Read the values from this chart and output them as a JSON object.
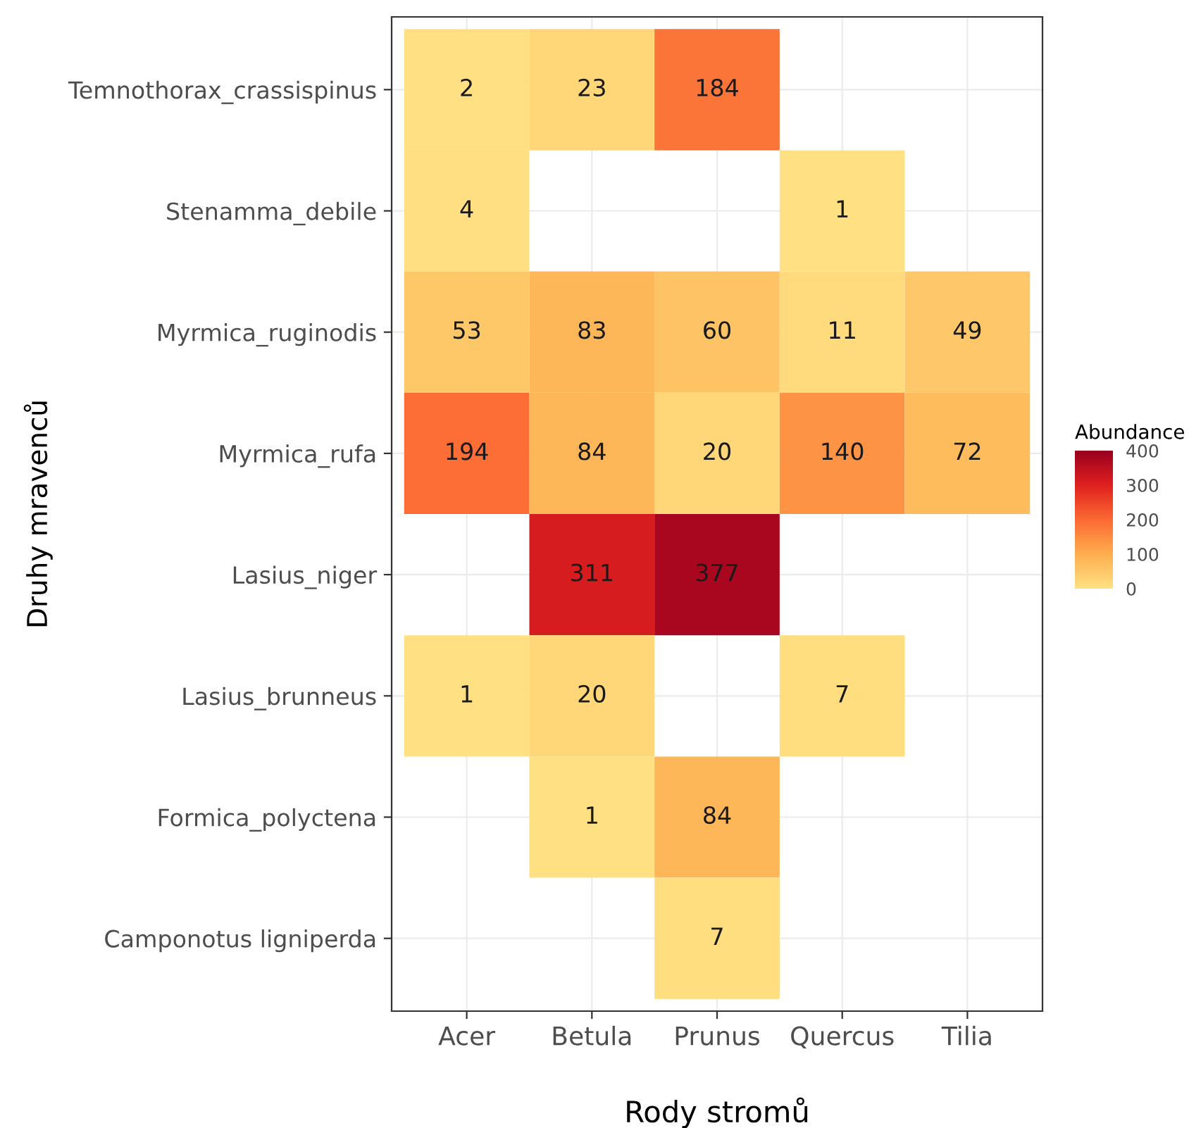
{
  "chart_data": {
    "type": "heatmap",
    "xlabel": "Rody stromů",
    "ylabel": "Druhy mravenců",
    "clabel": "Abundance",
    "categories": [
      "Acer",
      "Betula",
      "Prunus",
      "Quercus",
      "Tilia"
    ],
    "y_categories": [
      "Temnothorax_crassispinus",
      "Stenamma_debile",
      "Myrmica_ruginodis",
      "Myrmica_rufa",
      "Lasius_niger",
      "Lasius_brunneus",
      "Formica_polyctena",
      "Camponotus ligniperda"
    ],
    "cells": [
      [
        2,
        23,
        184,
        null,
        null
      ],
      [
        4,
        null,
        null,
        1,
        null
      ],
      [
        53,
        83,
        60,
        11,
        49
      ],
      [
        194,
        84,
        20,
        140,
        72
      ],
      [
        null,
        311,
        377,
        null,
        null
      ],
      [
        1,
        20,
        null,
        7,
        null
      ],
      [
        null,
        1,
        84,
        null,
        null
      ],
      [
        null,
        null,
        7,
        null,
        null
      ]
    ],
    "clim": [
      0,
      400
    ],
    "cticks": [
      0,
      100,
      200,
      300,
      400
    ],
    "data_labels": true,
    "grid": true
  }
}
